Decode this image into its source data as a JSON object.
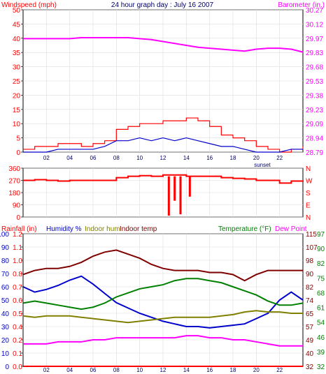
{
  "chart_data": [
    {
      "type": "line",
      "title": "24 hour graph day : July 16 2007",
      "left_axis": {
        "label": "Windspeed (mph)",
        "ticks": [
          "0",
          "5",
          "10",
          "15",
          "20",
          "25",
          "30",
          "35",
          "40",
          "45",
          "50"
        ],
        "range": [
          0,
          50
        ]
      },
      "right_axis": {
        "label": "Barometer (in.)",
        "ticks": [
          "28.79",
          "28.94",
          "29.09",
          "29.23",
          "29.38",
          "29.53",
          "29.68",
          "29.83",
          "29.97",
          "30.12",
          "30.27"
        ],
        "range": [
          28.79,
          30.27
        ]
      },
      "x_ticks": [
        "02",
        "04",
        "06",
        "08",
        "10",
        "12",
        "14",
        "16",
        "18",
        "20",
        "22"
      ],
      "annotation": "sunset",
      "colors": {
        "wind_gust": "#ff0000",
        "wind_avg": "#0000cc",
        "barometer": "#ff00ff",
        "axis_left": "#ff0000",
        "axis_right": "#ff00ff"
      },
      "barometer": {
        "x": [
          0,
          1,
          2,
          3,
          4,
          5,
          6,
          7,
          8,
          9,
          10,
          11,
          12,
          13,
          14,
          15,
          16,
          17,
          18,
          19,
          20,
          21,
          22,
          23,
          24
        ],
        "y": [
          29.97,
          29.97,
          29.97,
          29.97,
          29.97,
          29.98,
          29.98,
          29.98,
          29.98,
          29.98,
          29.97,
          29.96,
          29.94,
          29.92,
          29.9,
          29.88,
          29.87,
          29.86,
          29.85,
          29.84,
          29.86,
          29.87,
          29.87,
          29.86,
          29.83
        ]
      },
      "wind_gust": {
        "x": [
          0,
          1,
          2,
          3,
          4,
          5,
          6,
          7,
          8,
          9,
          10,
          11,
          12,
          13,
          14,
          15,
          16,
          17,
          18,
          19,
          20,
          21,
          22,
          23,
          24
        ],
        "y": [
          1,
          2,
          2,
          3,
          3,
          2,
          3,
          4,
          8,
          9,
          10,
          10,
          11,
          11,
          12,
          11,
          9,
          6,
          5,
          4,
          2,
          1,
          0,
          1,
          2
        ]
      },
      "wind_avg": {
        "x": [
          0,
          1,
          2,
          3,
          4,
          5,
          6,
          7,
          8,
          9,
          10,
          11,
          12,
          13,
          14,
          15,
          16,
          17,
          18,
          19,
          20,
          21,
          22,
          23,
          24
        ],
        "y": [
          0,
          0,
          0,
          1,
          1,
          1,
          1,
          2,
          4,
          4,
          5,
          4,
          5,
          4,
          5,
          4,
          3,
          2,
          2,
          1,
          0,
          0,
          0,
          1,
          1
        ]
      }
    },
    {
      "type": "line",
      "title": "",
      "left_axis": {
        "label": "",
        "ticks": [
          "0",
          "90",
          "180",
          "270",
          "360"
        ],
        "range": [
          0,
          360
        ]
      },
      "right_axis": {
        "label": "",
        "ticks": [
          "N",
          "E",
          "S",
          "W",
          "N"
        ]
      },
      "colors": {
        "direction": "#ff0000"
      },
      "direction": {
        "x": [
          0,
          1,
          2,
          3,
          4,
          5,
          6,
          7,
          8,
          9,
          10,
          11,
          12,
          13,
          14,
          15,
          16,
          17,
          18,
          19,
          20,
          21,
          22,
          23,
          24
        ],
        "y": [
          270,
          275,
          270,
          265,
          270,
          270,
          270,
          270,
          290,
          300,
          305,
          300,
          310,
          310,
          300,
          300,
          300,
          290,
          285,
          280,
          270,
          270,
          250,
          265,
          270
        ]
      },
      "direction_dips": [
        {
          "x": 12.5,
          "y": 10
        },
        {
          "x": 13.0,
          "y": 120
        },
        {
          "x": 13.5,
          "y": 20
        },
        {
          "x": 14.3,
          "y": 150
        }
      ]
    },
    {
      "type": "line",
      "title": "",
      "legend_left": [
        {
          "name": "Rainfall (in)",
          "color": "#ff0000"
        },
        {
          "name": "Humidity %",
          "color": "#0000cc"
        },
        {
          "name": "Indoor hum",
          "color": "#808000"
        },
        {
          "name": "Indoor temp",
          "color": "#800000"
        }
      ],
      "legend_right": [
        {
          "name": "Temperature (°F)",
          "color": "#008000"
        },
        {
          "name": "Dew Point",
          "color": "#ff00ff"
        }
      ],
      "axis_humidity": {
        "ticks": [
          "0",
          "10",
          "20",
          "30",
          "40",
          "50",
          "60",
          "70",
          "80",
          "90",
          "100"
        ],
        "range": [
          0,
          100
        ]
      },
      "axis_rain": {
        "ticks": [
          "0.0",
          "0.1",
          "0.2",
          "0.4",
          "0.5",
          "0.6",
          "0.7",
          "0.8",
          "1.0",
          "1.1",
          "1.2"
        ],
        "range": [
          0,
          1.2
        ]
      },
      "axis_temp_a": {
        "ticks": [
          "32",
          "40",
          "49",
          "57",
          "65",
          "74",
          "82",
          "90",
          "98",
          "107",
          "115"
        ]
      },
      "axis_temp_b": {
        "ticks": [
          "32",
          "39",
          "46",
          "54",
          "61",
          "68",
          "75",
          "82",
          "90",
          "97"
        ],
        "range": [
          32,
          97
        ]
      },
      "x_ticks": [
        "02",
        "04",
        "06",
        "08",
        "10",
        "12",
        "14",
        "16",
        "18",
        "20",
        "22"
      ],
      "series": [
        {
          "name": "Rainfall (in)",
          "color": "#ff0000",
          "x": [
            0,
            24
          ],
          "y": [
            0.0,
            0.0
          ]
        },
        {
          "name": "Humidity %",
          "color": "#0000cc",
          "x": [
            0,
            1,
            2,
            3,
            4,
            5,
            6,
            7,
            8,
            9,
            10,
            11,
            12,
            13,
            14,
            15,
            16,
            17,
            18,
            19,
            20,
            21,
            22,
            23,
            24
          ],
          "y": [
            60,
            56,
            58,
            61,
            65,
            68,
            62,
            55,
            48,
            44,
            40,
            37,
            34,
            32,
            30,
            30,
            29,
            30,
            31,
            32,
            36,
            40,
            50,
            56,
            50
          ]
        },
        {
          "name": "Indoor hum",
          "color": "#808000",
          "x": [
            0,
            1,
            2,
            3,
            4,
            5,
            6,
            7,
            8,
            9,
            10,
            11,
            12,
            13,
            14,
            15,
            16,
            17,
            18,
            19,
            20,
            21,
            22,
            23,
            24
          ],
          "y": [
            38,
            37,
            38,
            38,
            38,
            37,
            36,
            35,
            34,
            33,
            34,
            35,
            36,
            37,
            37,
            37,
            37,
            38,
            39,
            41,
            42,
            41,
            41,
            40,
            40
          ]
        }
      ],
      "series_temp": [
        {
          "name": "Indoor temp",
          "color": "#800000",
          "x": [
            0,
            1,
            2,
            3,
            4,
            5,
            6,
            7,
            8,
            9,
            10,
            11,
            12,
            13,
            14,
            15,
            16,
            17,
            18,
            19,
            20,
            21,
            22,
            23,
            24
          ],
          "y": [
            77,
            79,
            80,
            80,
            81,
            83,
            86,
            88,
            89,
            87,
            85,
            82,
            80,
            79,
            79,
            79,
            78,
            78,
            77,
            74,
            77,
            79,
            79,
            79,
            79
          ]
        },
        {
          "name": "Temperature (°F)",
          "color": "#008000",
          "x": [
            0,
            1,
            2,
            3,
            4,
            5,
            6,
            7,
            8,
            9,
            10,
            11,
            12,
            13,
            14,
            15,
            16,
            17,
            18,
            19,
            20,
            21,
            22,
            23,
            24
          ],
          "y": [
            63,
            64,
            63,
            62,
            61,
            60,
            61,
            63,
            66,
            68,
            70,
            71,
            72,
            74,
            75,
            75,
            74,
            73,
            71,
            69,
            67,
            64,
            62,
            62,
            63
          ]
        },
        {
          "name": "Dew Point",
          "color": "#ff00ff",
          "x": [
            0,
            1,
            2,
            3,
            4,
            5,
            6,
            7,
            8,
            9,
            10,
            11,
            12,
            13,
            14,
            15,
            16,
            17,
            18,
            19,
            20,
            21,
            22,
            23,
            24
          ],
          "y": [
            43,
            43,
            43,
            44,
            44,
            44,
            45,
            45,
            46,
            46,
            46,
            46,
            46,
            46,
            47,
            47,
            46,
            46,
            45,
            45,
            44,
            43,
            42,
            42,
            42
          ]
        }
      ]
    }
  ]
}
